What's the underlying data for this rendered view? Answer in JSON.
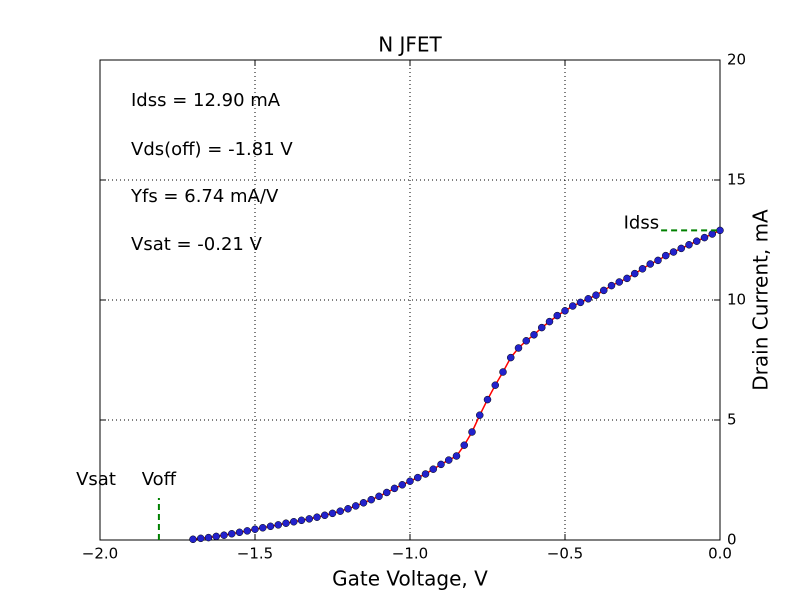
{
  "chart_data": {
    "type": "line",
    "title": "N JFET",
    "x_label": "Gate Voltage, V",
    "y_label": "Drain Current, mA",
    "xlim": [
      -2,
      0
    ],
    "ylim": [
      0,
      20
    ],
    "xticks": [
      {
        "value": -2,
        "label": "−2.0"
      },
      {
        "value": -1.5,
        "label": "−1.5"
      },
      {
        "value": -1,
        "label": "−1.0"
      },
      {
        "value": -0.5,
        "label": "−0.5"
      },
      {
        "value": 0,
        "label": "0.0"
      }
    ],
    "yticks": [
      0,
      5,
      10,
      15,
      20
    ],
    "y_axis_side": "right",
    "grid": true,
    "color": "#ff0000",
    "marker_color": "#2222cc",
    "x": [
      -1.7,
      -1.675,
      -1.65,
      -1.625,
      -1.6,
      -1.575,
      -1.55,
      -1.525,
      -1.5,
      -1.475,
      -1.45,
      -1.425,
      -1.4,
      -1.375,
      -1.35,
      -1.325,
      -1.3,
      -1.275,
      -1.25,
      -1.225,
      -1.2,
      -1.175,
      -1.15,
      -1.125,
      -1.1,
      -1.075,
      -1.05,
      -1.025,
      -1.0,
      -0.975,
      -0.95,
      -0.925,
      -0.9,
      -0.875,
      -0.85,
      -0.825,
      -0.8,
      -0.775,
      -0.75,
      -0.725,
      -0.7,
      -0.675,
      -0.65,
      -0.625,
      -0.6,
      -0.575,
      -0.55,
      -0.525,
      -0.5,
      -0.475,
      -0.45,
      -0.425,
      -0.4,
      -0.375,
      -0.35,
      -0.325,
      -0.3,
      -0.275,
      -0.25,
      -0.225,
      -0.2,
      -0.175,
      -0.15,
      -0.125,
      -0.1,
      -0.075,
      -0.05,
      -0.025,
      0
    ],
    "values": [
      0.03,
      0.07,
      0.1,
      0.15,
      0.2,
      0.26,
      0.32,
      0.38,
      0.45,
      0.51,
      0.57,
      0.63,
      0.7,
      0.76,
      0.82,
      0.88,
      0.95,
      1.03,
      1.11,
      1.2,
      1.3,
      1.42,
      1.55,
      1.68,
      1.82,
      1.98,
      2.15,
      2.3,
      2.45,
      2.6,
      2.75,
      2.95,
      3.15,
      3.33,
      3.5,
      3.95,
      4.5,
      5.2,
      5.85,
      6.45,
      7.0,
      7.6,
      8.0,
      8.3,
      8.55,
      8.85,
      9.1,
      9.35,
      9.55,
      9.75,
      9.9,
      10.05,
      10.2,
      10.4,
      10.6,
      10.75,
      10.9,
      11.1,
      11.3,
      11.5,
      11.65,
      11.85,
      12.0,
      12.15,
      12.3,
      12.45,
      12.6,
      12.75,
      12.9
    ],
    "annotations": [
      "Idss = 12.90 mA",
      "Vds(off) = -1.81 V",
      "Yfs = 6.74 mA/V",
      "Vsat = -0.21 V"
    ],
    "marker_line_color": "#008000",
    "markers": [
      {
        "label": "Voff",
        "x": -1.81,
        "y_top": 1.75
      },
      {
        "label": "Idss",
        "x_start": -0.19,
        "y": 12.9
      }
    ],
    "extra_label": "Vsat"
  }
}
